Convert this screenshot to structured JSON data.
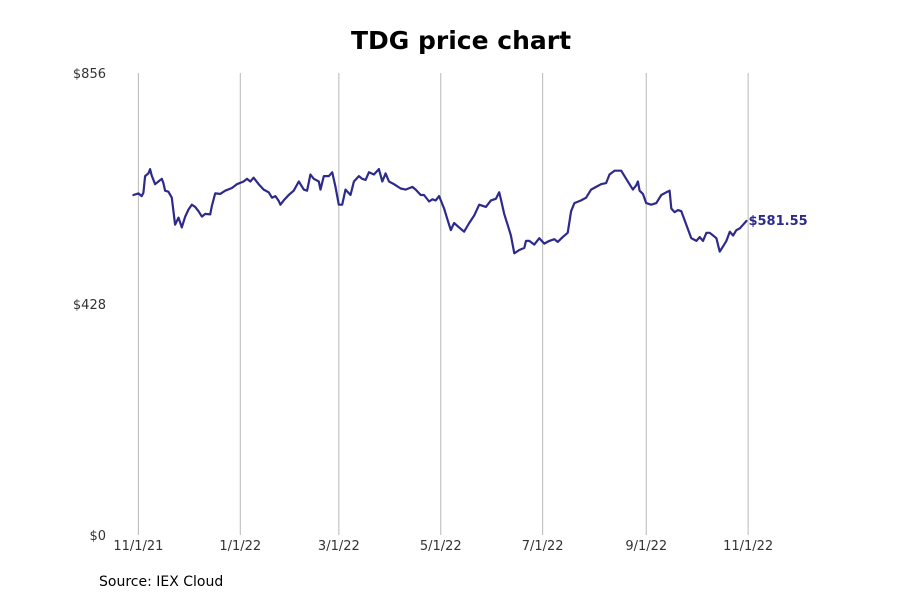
{
  "chart_data": {
    "type": "line",
    "title": "TDG price chart",
    "xlabel": "",
    "ylabel": "",
    "x_ticks": [
      "11/1/21",
      "1/1/22",
      "3/1/22",
      "5/1/22",
      "7/1/22",
      "9/1/22",
      "11/1/22"
    ],
    "y_ticks": [
      "$0",
      "$428",
      "$856"
    ],
    "ylim": [
      0,
      856
    ],
    "xlim": [
      "2021-10-21",
      "2022-12-20"
    ],
    "grid": "vertical lines at x ticks",
    "line_color": "#2d2a8c",
    "end_label": "$581.55",
    "series": [
      {
        "points": [
          [
            "2021-10-29",
            630
          ],
          [
            "2021-11-01",
            633
          ],
          [
            "2021-11-03",
            628
          ],
          [
            "2021-11-04",
            634
          ],
          [
            "2021-11-05",
            665
          ],
          [
            "2021-11-07",
            670
          ],
          [
            "2021-11-08",
            678
          ],
          [
            "2021-11-09",
            666
          ],
          [
            "2021-11-11",
            650
          ],
          [
            "2021-11-13",
            655
          ],
          [
            "2021-11-15",
            660
          ],
          [
            "2021-11-16",
            652
          ],
          [
            "2021-11-17",
            638
          ],
          [
            "2021-11-19",
            636
          ],
          [
            "2021-11-21",
            625
          ],
          [
            "2021-11-23",
            575
          ],
          [
            "2021-11-25",
            588
          ],
          [
            "2021-11-27",
            570
          ],
          [
            "2021-11-29",
            590
          ],
          [
            "2021-12-01",
            603
          ],
          [
            "2021-12-03",
            612
          ],
          [
            "2021-12-05",
            608
          ],
          [
            "2021-12-07",
            600
          ],
          [
            "2021-12-09",
            590
          ],
          [
            "2021-12-11",
            595
          ],
          [
            "2021-12-14",
            594
          ],
          [
            "2021-12-15",
            610
          ],
          [
            "2021-12-17",
            633
          ],
          [
            "2021-12-20",
            632
          ],
          [
            "2021-12-23",
            638
          ],
          [
            "2021-12-27",
            643
          ],
          [
            "2021-12-30",
            650
          ],
          [
            "2022-01-03",
            655
          ],
          [
            "2022-01-05",
            660
          ],
          [
            "2022-01-07",
            655
          ],
          [
            "2022-01-09",
            662
          ],
          [
            "2022-01-12",
            650
          ],
          [
            "2022-01-15",
            640
          ],
          [
            "2022-01-18",
            635
          ],
          [
            "2022-01-20",
            625
          ],
          [
            "2022-01-22",
            628
          ],
          [
            "2022-01-24",
            619
          ],
          [
            "2022-01-25",
            612
          ],
          [
            "2022-01-27",
            620
          ],
          [
            "2022-01-30",
            630
          ],
          [
            "2022-02-02",
            638
          ],
          [
            "2022-02-05",
            655
          ],
          [
            "2022-02-08",
            640
          ],
          [
            "2022-02-10",
            638
          ],
          [
            "2022-02-12",
            668
          ],
          [
            "2022-02-14",
            660
          ],
          [
            "2022-02-17",
            655
          ],
          [
            "2022-02-18",
            640
          ],
          [
            "2022-02-20",
            665
          ],
          [
            "2022-02-23",
            665
          ],
          [
            "2022-02-25",
            672
          ],
          [
            "2022-02-27",
            645
          ],
          [
            "2022-03-01",
            612
          ],
          [
            "2022-03-03",
            612
          ],
          [
            "2022-03-05",
            640
          ],
          [
            "2022-03-08",
            630
          ],
          [
            "2022-03-10",
            655
          ],
          [
            "2022-03-13",
            665
          ],
          [
            "2022-03-15",
            660
          ],
          [
            "2022-03-17",
            658
          ],
          [
            "2022-03-19",
            672
          ],
          [
            "2022-03-22",
            668
          ],
          [
            "2022-03-25",
            678
          ],
          [
            "2022-03-27",
            655
          ],
          [
            "2022-03-29",
            670
          ],
          [
            "2022-03-31",
            655
          ],
          [
            "2022-04-03",
            650
          ],
          [
            "2022-04-07",
            642
          ],
          [
            "2022-04-10",
            640
          ],
          [
            "2022-04-14",
            645
          ],
          [
            "2022-04-16",
            640
          ],
          [
            "2022-04-19",
            630
          ],
          [
            "2022-04-21",
            630
          ],
          [
            "2022-04-24",
            618
          ],
          [
            "2022-04-26",
            622
          ],
          [
            "2022-04-28",
            620
          ],
          [
            "2022-04-30",
            628
          ],
          [
            "2022-05-03",
            605
          ],
          [
            "2022-05-05",
            585
          ],
          [
            "2022-05-07",
            565
          ],
          [
            "2022-05-09",
            578
          ],
          [
            "2022-05-12",
            570
          ],
          [
            "2022-05-15",
            562
          ],
          [
            "2022-05-18",
            578
          ],
          [
            "2022-05-21",
            592
          ],
          [
            "2022-05-24",
            612
          ],
          [
            "2022-05-28",
            608
          ],
          [
            "2022-05-31",
            620
          ],
          [
            "2022-06-03",
            623
          ],
          [
            "2022-06-05",
            635
          ],
          [
            "2022-06-06",
            622
          ],
          [
            "2022-06-08",
            595
          ],
          [
            "2022-06-10",
            575
          ],
          [
            "2022-06-12",
            555
          ],
          [
            "2022-06-14",
            522
          ],
          [
            "2022-06-17",
            528
          ],
          [
            "2022-06-20",
            532
          ],
          [
            "2022-06-21",
            545
          ],
          [
            "2022-06-23",
            545
          ],
          [
            "2022-06-26",
            538
          ],
          [
            "2022-06-29",
            550
          ],
          [
            "2022-07-02",
            540
          ],
          [
            "2022-07-05",
            545
          ],
          [
            "2022-07-08",
            548
          ],
          [
            "2022-07-10",
            543
          ],
          [
            "2022-07-13",
            552
          ],
          [
            "2022-07-16",
            560
          ],
          [
            "2022-07-18",
            600
          ],
          [
            "2022-07-20",
            615
          ],
          [
            "2022-07-24",
            620
          ],
          [
            "2022-07-27",
            625
          ],
          [
            "2022-07-30",
            640
          ],
          [
            "2022-08-02",
            645
          ],
          [
            "2022-08-05",
            650
          ],
          [
            "2022-08-08",
            652
          ],
          [
            "2022-08-10",
            668
          ],
          [
            "2022-08-13",
            675
          ],
          [
            "2022-08-17",
            675
          ],
          [
            "2022-08-19",
            665
          ],
          [
            "2022-08-22",
            650
          ],
          [
            "2022-08-24",
            640
          ],
          [
            "2022-08-26",
            648
          ],
          [
            "2022-08-27",
            655
          ],
          [
            "2022-08-28",
            638
          ],
          [
            "2022-08-30",
            632
          ],
          [
            "2022-09-01",
            615
          ],
          [
            "2022-09-04",
            612
          ],
          [
            "2022-09-07",
            615
          ],
          [
            "2022-09-10",
            630
          ],
          [
            "2022-09-13",
            635
          ],
          [
            "2022-09-15",
            638
          ],
          [
            "2022-09-16",
            605
          ],
          [
            "2022-09-18",
            598
          ],
          [
            "2022-09-20",
            602
          ],
          [
            "2022-09-22",
            600
          ],
          [
            "2022-09-25",
            575
          ],
          [
            "2022-09-28",
            550
          ],
          [
            "2022-10-01",
            545
          ],
          [
            "2022-10-03",
            552
          ],
          [
            "2022-10-05",
            545
          ],
          [
            "2022-10-07",
            560
          ],
          [
            "2022-10-09",
            560
          ],
          [
            "2022-10-11",
            555
          ],
          [
            "2022-10-13",
            550
          ],
          [
            "2022-10-15",
            525
          ],
          [
            "2022-10-17",
            535
          ],
          [
            "2022-10-19",
            545
          ],
          [
            "2022-10-21",
            562
          ],
          [
            "2022-10-23",
            555
          ],
          [
            "2022-10-25",
            565
          ],
          [
            "2022-10-27",
            568
          ],
          [
            "2022-10-29",
            575
          ],
          [
            "2022-10-31",
            582
          ]
        ]
      }
    ]
  },
  "source_note": "Source: IEX Cloud"
}
